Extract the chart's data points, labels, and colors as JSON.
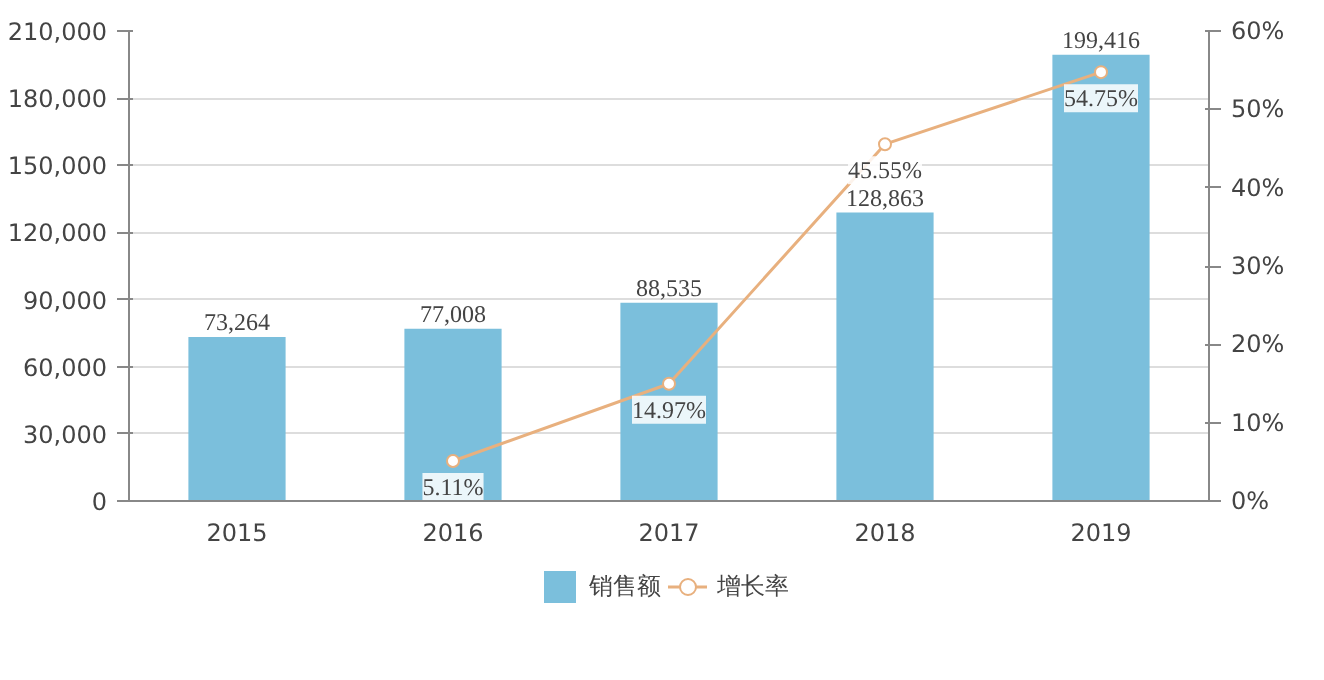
{
  "chart_data": {
    "type": "bar",
    "categories": [
      "2015",
      "2016",
      "2017",
      "2018",
      "2019"
    ],
    "series": [
      {
        "name": "销售额",
        "color": "#7bbfdc",
        "values": [
          73264,
          77008,
          88535,
          128863,
          199416
        ],
        "value_labels": [
          "73,264",
          "77,008",
          "88,535",
          "128,863",
          "199,416"
        ]
      },
      {
        "name": "增长率",
        "type": "line",
        "axis": "y2",
        "color": "#e8b07e",
        "marker": "circle",
        "values": [
          null,
          5.11,
          14.97,
          45.55,
          54.75
        ],
        "value_labels": [
          null,
          "5.11%",
          "14.97%",
          "45.55%",
          "54.75%"
        ]
      }
    ],
    "ylim": [
      0,
      210000
    ],
    "yticks": [
      {
        "value": 0,
        "label": "0"
      },
      {
        "value": 30000,
        "label": "30,000"
      },
      {
        "value": 60000,
        "label": "60,000"
      },
      {
        "value": 90000,
        "label": "90,000"
      },
      {
        "value": 120000,
        "label": "120,000"
      },
      {
        "value": 150000,
        "label": "150,000"
      },
      {
        "value": 180000,
        "label": "180,000"
      },
      {
        "value": 210000,
        "label": "210,000"
      }
    ],
    "y2lim": [
      0,
      60
    ],
    "y2ticks": [
      {
        "value": 0,
        "label": "0%"
      },
      {
        "value": 10,
        "label": "10%"
      },
      {
        "value": 20,
        "label": "20%"
      },
      {
        "value": 30,
        "label": "30%"
      },
      {
        "value": 40,
        "label": "40%"
      },
      {
        "value": 50,
        "label": "50%"
      },
      {
        "value": 60,
        "label": "60%"
      }
    ],
    "grid": "y",
    "legend": "bottom"
  }
}
